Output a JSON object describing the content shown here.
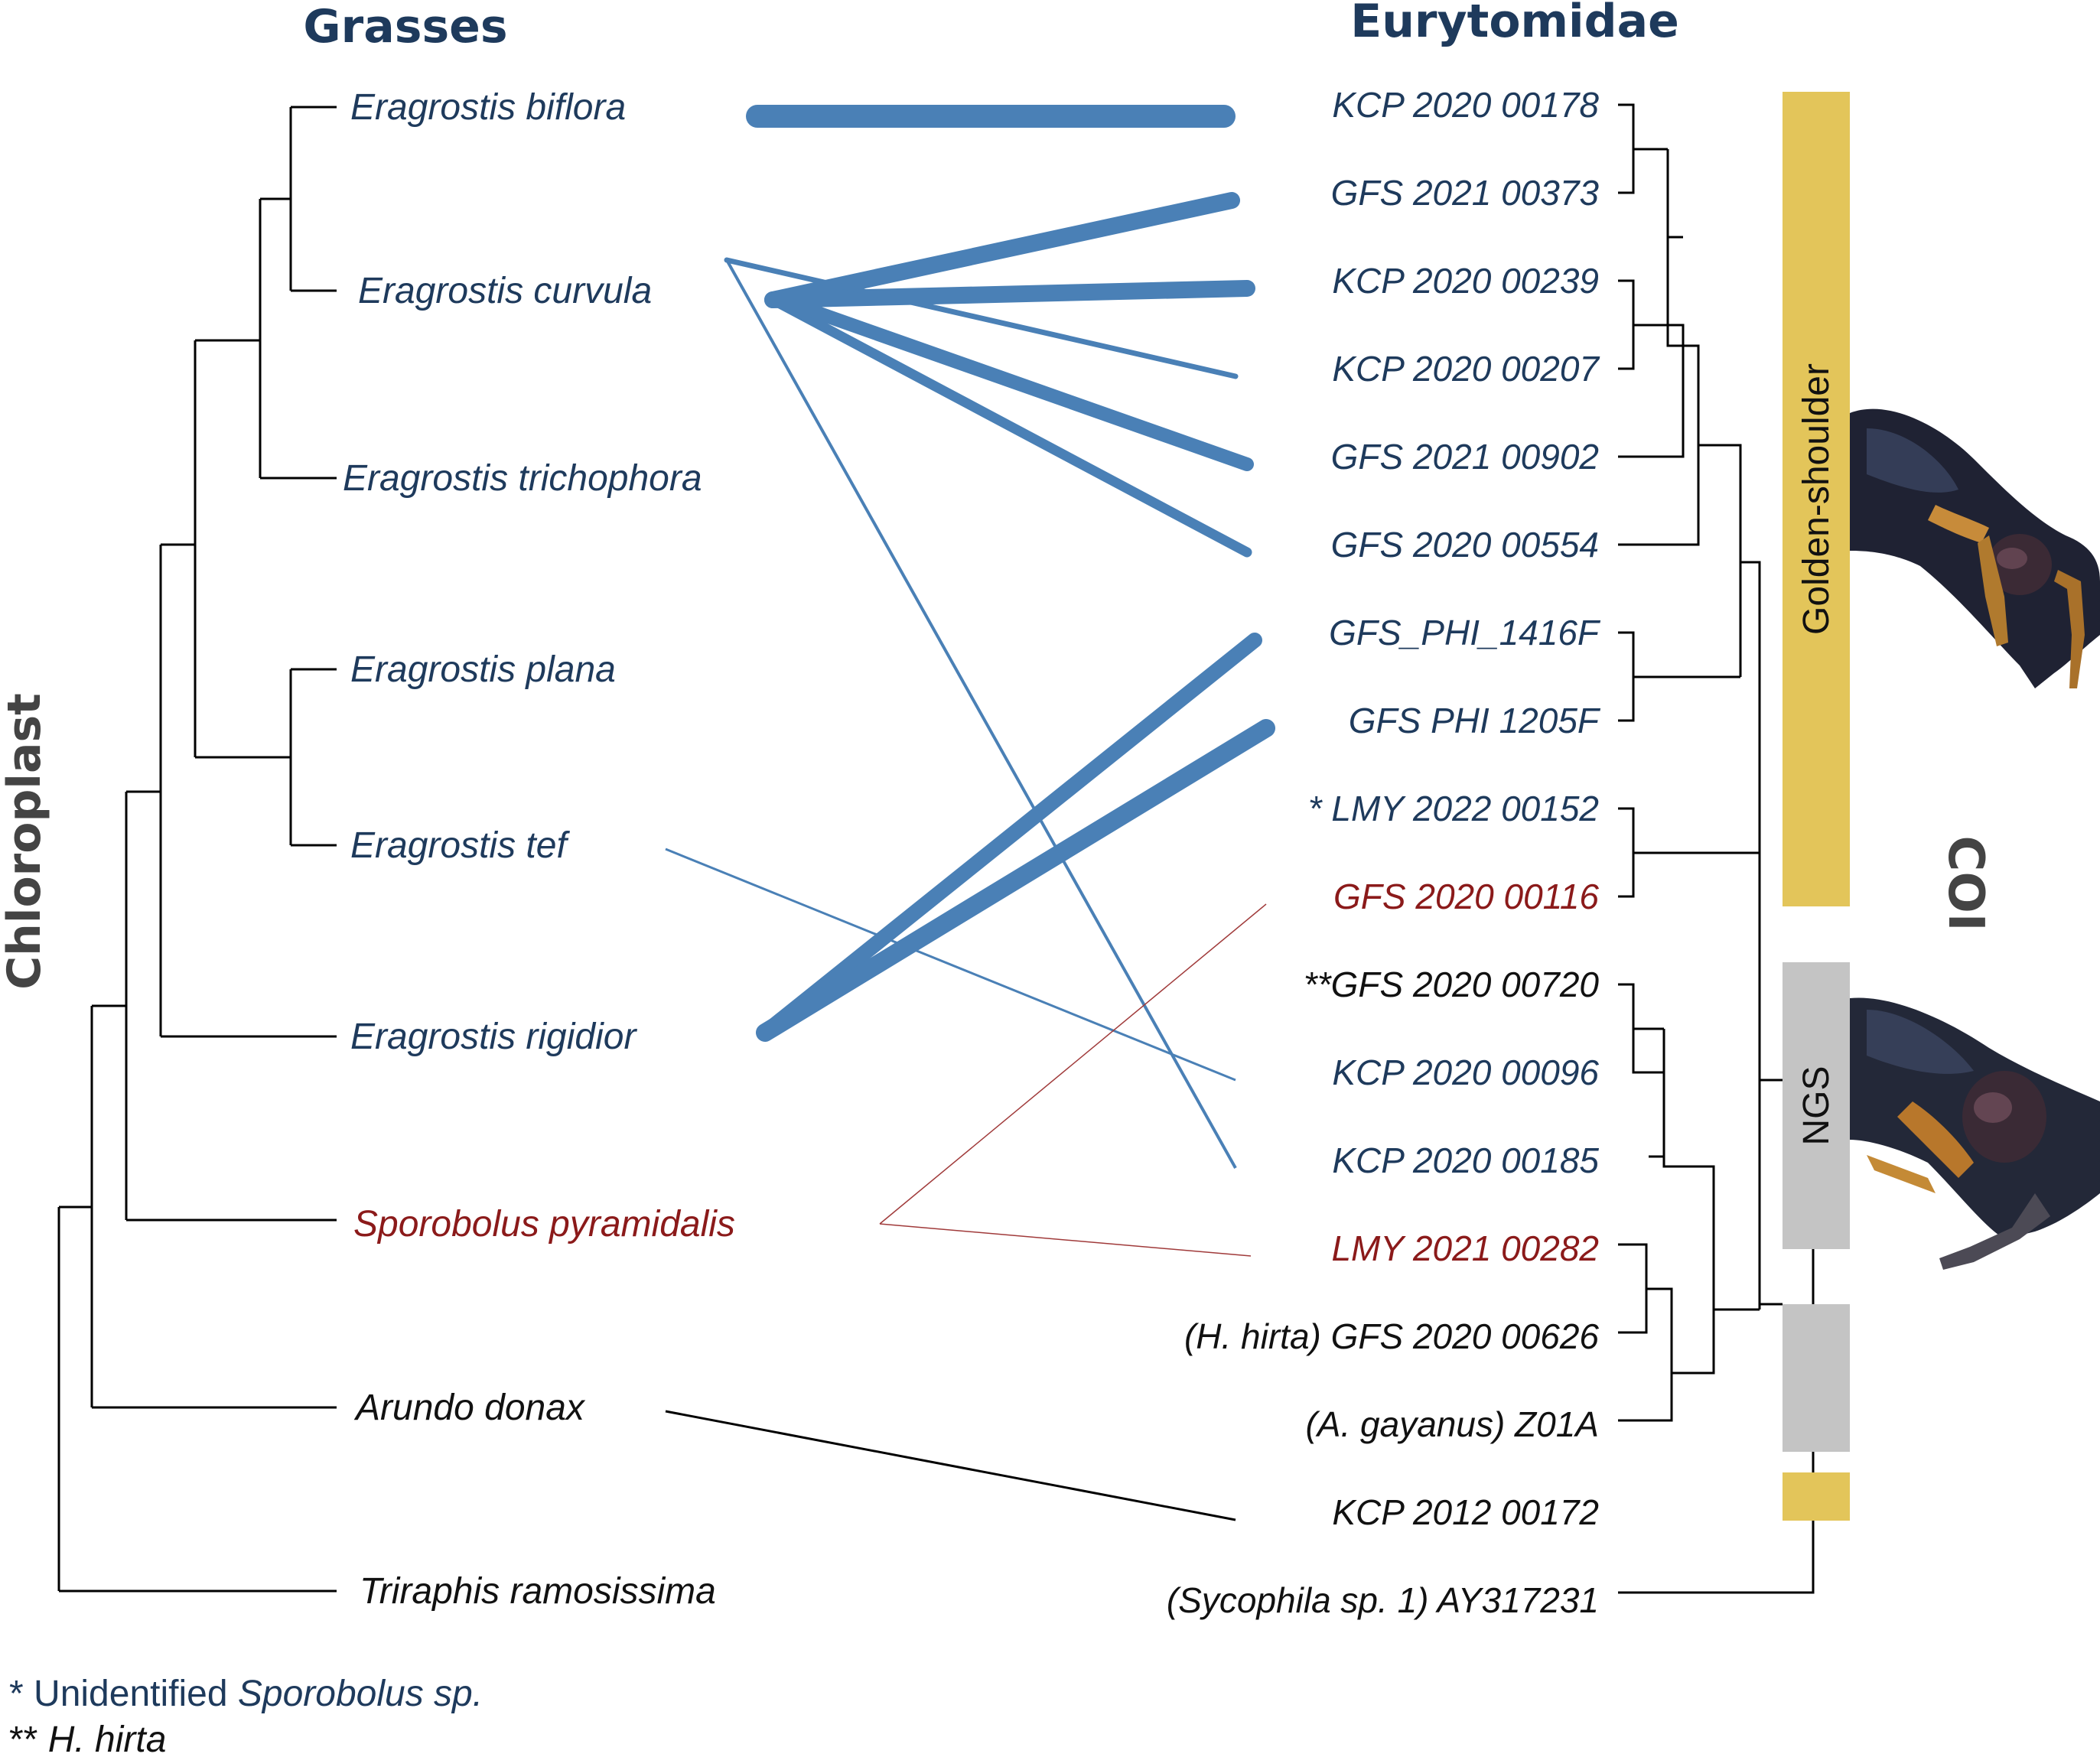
{
  "colors": {
    "blue_text": "#1e3a5c",
    "red_text": "#8b1a1a",
    "black_text": "#111111",
    "link_blue": "#4a80b6",
    "link_red": "#a03a3a",
    "link_black": "#000000",
    "header": "#1e3a5c",
    "axis_label": "#444444",
    "gold": "#e3c55a",
    "grey": "#c4c4c4"
  },
  "headers": {
    "left": "Grasses",
    "right": "Eurytomidae",
    "left_tree": "Chloroplast",
    "right_tree": "COI"
  },
  "grasses": [
    {
      "label": "Eragrostis biflora",
      "color": "blue"
    },
    {
      "label": "Eragrostis curvula",
      "color": "blue"
    },
    {
      "label": "Eragrostis trichophora",
      "color": "blue"
    },
    {
      "label": "Eragrostis plana",
      "color": "blue"
    },
    {
      "label": "Eragrostis tef",
      "color": "blue"
    },
    {
      "label": "Eragrostis rigidior",
      "color": "blue"
    },
    {
      "label": "Sporobolus pyramidalis",
      "color": "red"
    },
    {
      "label": "Arundo donax",
      "color": "black"
    },
    {
      "label": "Triraphis ramosissima",
      "color": "black"
    }
  ],
  "wasps": [
    {
      "label": "KCP  2020  00178",
      "color": "blue"
    },
    {
      "label": "GFS  2021  00373",
      "color": "blue"
    },
    {
      "label": "KCP  2020  00239",
      "color": "blue"
    },
    {
      "label": "KCP  2020  00207",
      "color": "blue"
    },
    {
      "label": "GFS  2021  00902",
      "color": "blue"
    },
    {
      "label": "GFS  2020  00554",
      "color": "blue"
    },
    {
      "label": "GFS_PHI_1416F",
      "color": "blue"
    },
    {
      "label": "GFS  PHI  1205F",
      "color": "blue"
    },
    {
      "label": "* LMY  2022  00152",
      "color": "blue"
    },
    {
      "label": "GFS  2020  00116",
      "color": "red"
    },
    {
      "label": "**GFS  2020  00720",
      "color": "black"
    },
    {
      "label": "KCP  2020  00096",
      "color": "blue"
    },
    {
      "label": "KCP  2020  00185",
      "color": "blue"
    },
    {
      "label": "LMY  2021  00282",
      "color": "red"
    },
    {
      "label": "(H. hirta) GFS  2020  00626",
      "color": "black"
    },
    {
      "label": "(A. gayanus)  Z01A",
      "color": "black"
    },
    {
      "label": "KCP  2012  00172",
      "color": "black"
    },
    {
      "label": "(Sycophila sp. 1)  AY317231",
      "color": "black"
    }
  ],
  "associations": [
    {
      "grass": 0,
      "wasp": 0,
      "weight": 30,
      "color": "blue"
    },
    {
      "grass": 1,
      "wasp": 1,
      "weight": 22,
      "color": "blue"
    },
    {
      "grass": 1,
      "wasp": 2,
      "weight": 22,
      "color": "blue"
    },
    {
      "grass": 1,
      "wasp": 5,
      "weight": 13,
      "color": "blue"
    },
    {
      "grass": 2,
      "wasp": 4,
      "weight": 18,
      "color": "blue"
    },
    {
      "grass": 3,
      "wasp": 3,
      "weight": 7,
      "color": "blue"
    },
    {
      "grass": 3,
      "wasp": 12,
      "weight": 4,
      "color": "blue"
    },
    {
      "grass": 4,
      "wasp": 11,
      "weight": 3,
      "color": "blue"
    },
    {
      "grass": 5,
      "wasp": 6,
      "weight": 20,
      "color": "blue"
    },
    {
      "grass": 5,
      "wasp": 7,
      "weight": 24,
      "color": "blue"
    },
    {
      "grass": 6,
      "wasp": 9,
      "weight": 1.5,
      "color": "red"
    },
    {
      "grass": 6,
      "wasp": 13,
      "weight": 1.5,
      "color": "red"
    },
    {
      "grass": 7,
      "wasp": 16,
      "weight": 3,
      "color": "black"
    }
  ],
  "clades": [
    {
      "label": "Golden-shoulder",
      "color": "gold"
    },
    {
      "label": "NGS",
      "color": "grey"
    },
    {
      "label": "",
      "color": "grey"
    },
    {
      "label": "",
      "color": "gold"
    }
  ],
  "footnotes": [
    {
      "mark": "*",
      "pre": " Unidentified ",
      "italic": "Sporobolus sp.",
      "color": "blue"
    },
    {
      "mark": "**",
      "pre": " ",
      "italic": "H. hirta",
      "color": "black"
    }
  ],
  "photos": [
    "wasp-photo-golden-shoulder",
    "wasp-photo-ngs"
  ]
}
